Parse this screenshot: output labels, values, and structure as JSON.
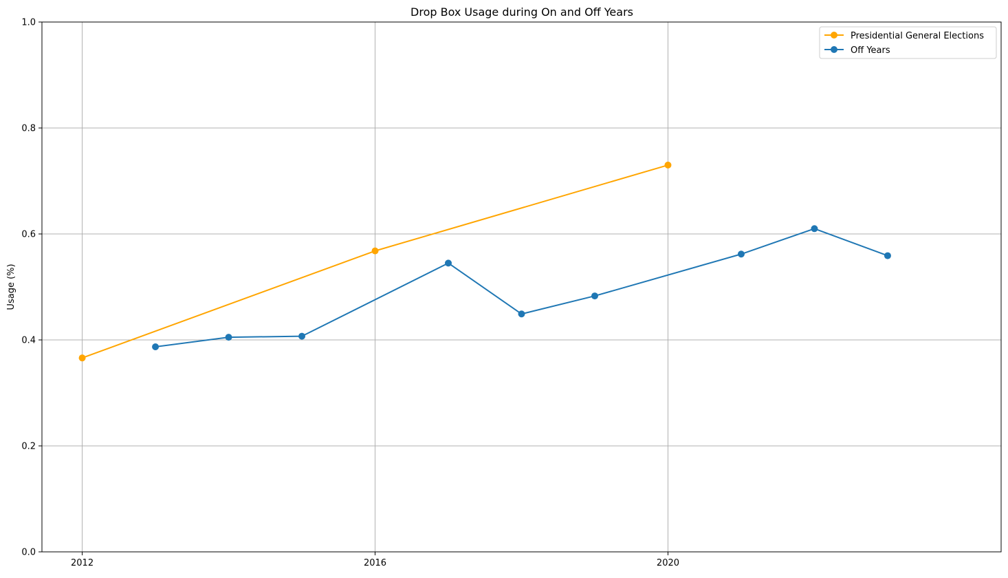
{
  "chart_data": {
    "type": "line",
    "title": "Drop Box Usage during On and Off Years",
    "xlabel": "",
    "ylabel": "Usage (%)",
    "xlim": [
      2011.45,
      2024.55
    ],
    "ylim": [
      0.0,
      1.0
    ],
    "xticks": [
      2012,
      2016,
      2020
    ],
    "xtick_labels": [
      "2012",
      "2016",
      "2020"
    ],
    "yticks": [
      0.0,
      0.2,
      0.4,
      0.6,
      0.8,
      1.0
    ],
    "ytick_labels": [
      "0.0",
      "0.2",
      "0.4",
      "0.6",
      "0.8",
      "1.0"
    ],
    "grid": true,
    "legend_position": "top-right",
    "series": [
      {
        "name": "Presidential General Elections",
        "color": "#FFA500",
        "marker": "circle",
        "x": [
          2012,
          2016,
          2020
        ],
        "y": [
          0.366,
          0.568,
          0.73
        ]
      },
      {
        "name": "Off Years",
        "color": "#1F77B4",
        "marker": "circle",
        "x": [
          2013,
          2014,
          2015,
          2017,
          2018,
          2019,
          2021,
          2022,
          2023
        ],
        "y": [
          0.387,
          0.405,
          0.407,
          0.545,
          0.449,
          0.483,
          0.562,
          0.61,
          0.559
        ]
      }
    ]
  }
}
